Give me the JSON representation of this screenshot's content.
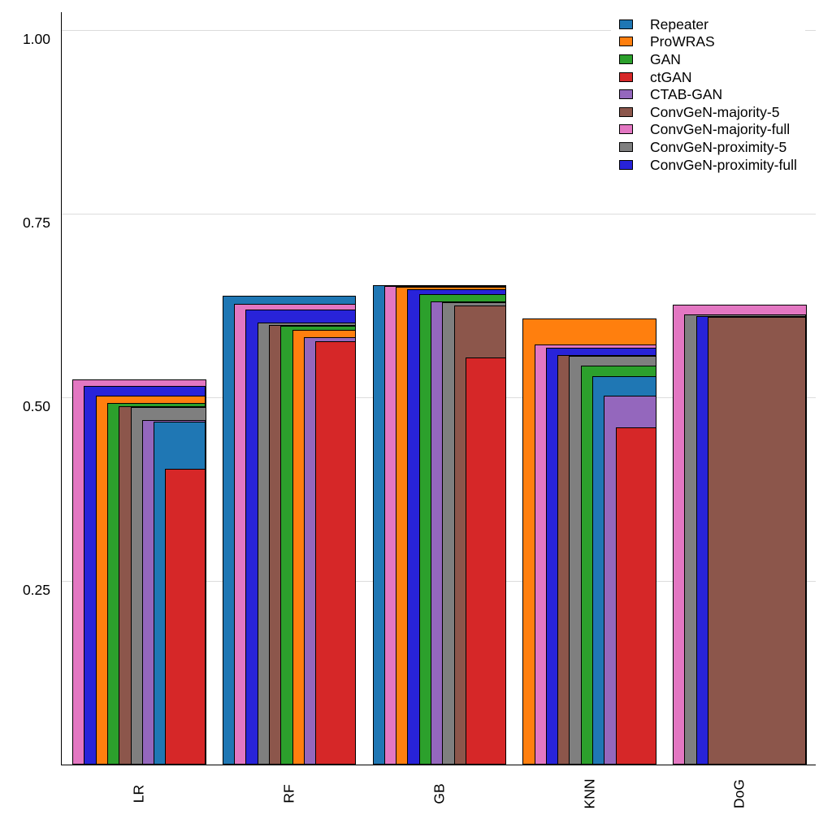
{
  "chart_data": {
    "type": "bar",
    "variant": "overlapping-nested-bars-sorted-descending",
    "title": "",
    "xlabel": "",
    "ylabel": "",
    "categories": [
      "LR",
      "RF",
      "GB",
      "KNN",
      "DoG"
    ],
    "series": [
      {
        "name": "Repeater",
        "color": "#1f77b4",
        "values": [
          0.467,
          0.638,
          0.653,
          0.529,
          null
        ]
      },
      {
        "name": "ProWRAS",
        "color": "#ff7f0e",
        "values": [
          0.502,
          0.592,
          0.65,
          0.607,
          null
        ]
      },
      {
        "name": "GAN",
        "color": "#2ca02c",
        "values": [
          0.492,
          0.597,
          0.64,
          0.543,
          null
        ]
      },
      {
        "name": "ctGAN",
        "color": "#d62728",
        "values": [
          0.403,
          0.576,
          0.554,
          0.459,
          null
        ]
      },
      {
        "name": "CTAB-GAN",
        "color": "#9467bd",
        "values": [
          0.469,
          0.582,
          0.63,
          0.502,
          null
        ]
      },
      {
        "name": "ConvGeN-majority-5",
        "color": "#8c564b",
        "values": [
          0.488,
          0.599,
          0.625,
          0.557,
          0.61
        ]
      },
      {
        "name": "ConvGeN-majority-full",
        "color": "#e377c2",
        "values": [
          0.524,
          0.627,
          0.651,
          0.572,
          0.626
        ]
      },
      {
        "name": "ConvGeN-proximity-5",
        "color": "#7f7f7f",
        "values": [
          0.487,
          0.602,
          0.629,
          0.556,
          0.613
        ]
      },
      {
        "name": "ConvGeN-proximity-full",
        "color": "#2823d9",
        "values": [
          0.516,
          0.62,
          0.647,
          0.568,
          0.611
        ]
      }
    ],
    "yticks": [
      0.25,
      0.5,
      0.75,
      1.0
    ],
    "ytick_labels": [
      "0.25",
      "0.50",
      "0.75",
      "1.00"
    ],
    "ylim": [
      0,
      1.025
    ],
    "grid": true,
    "legend_position": "top-right",
    "legend_entries": [
      "Repeater",
      "ProWRAS",
      "GAN",
      "ctGAN",
      "CTAB-GAN",
      "ConvGeN-majority-5",
      "ConvGeN-majority-full",
      "ConvGeN-proximity-5",
      "ConvGeN-proximity-full"
    ]
  }
}
